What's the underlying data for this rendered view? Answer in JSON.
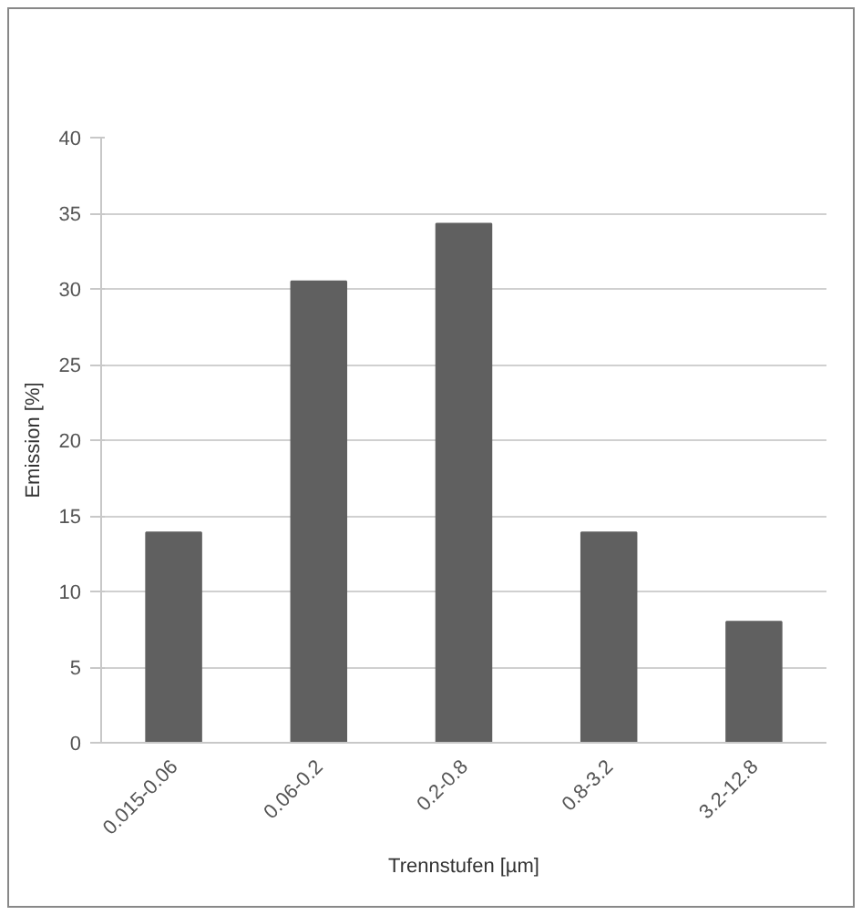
{
  "chart_data": {
    "type": "bar",
    "xlabel": "Trennstufen [µm]",
    "ylabel": "Emission [%]",
    "categories": [
      "0.015-0.06",
      "0.06-0.2",
      "0.2-0.8",
      "0.8-3.2",
      "3.2-12.8"
    ],
    "values": [
      13.9,
      30.5,
      34.3,
      13.9,
      8.0
    ],
    "color": "#606060",
    "ylim": [
      0,
      40
    ],
    "yticks": [
      0,
      5,
      10,
      15,
      20,
      25,
      30,
      35,
      40
    ],
    "grid": "y"
  }
}
